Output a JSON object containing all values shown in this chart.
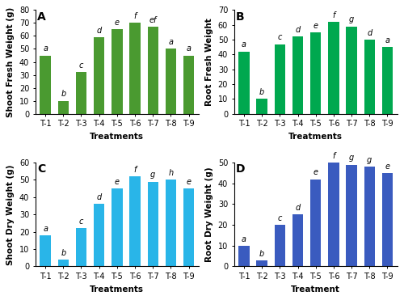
{
  "panels": [
    {
      "label": "A",
      "ylabel": "Shoot Fresh Weight (g)",
      "xlabel": "Treatments",
      "categories": [
        "T-1",
        "T-2",
        "T-3",
        "T-4",
        "T-5",
        "T-6",
        "T-7",
        "T-8",
        "T-9"
      ],
      "values": [
        45,
        10,
        32,
        59,
        65,
        70,
        67,
        50,
        45
      ],
      "letters": [
        "a",
        "b",
        "c",
        "d",
        "e",
        "f",
        "ef",
        "a",
        "a"
      ],
      "ylim": [
        0,
        80
      ],
      "yticks": [
        0,
        10,
        20,
        30,
        40,
        50,
        60,
        70,
        80
      ],
      "color": "#4a9a30"
    },
    {
      "label": "B",
      "ylabel": "Root Fresh Weight",
      "xlabel": "Treatments",
      "categories": [
        "T-1",
        "T-2",
        "T-3",
        "T-4",
        "T-5",
        "T-6",
        "T-7",
        "T-8",
        "T-9"
      ],
      "values": [
        42,
        10,
        47,
        52,
        55,
        62,
        59,
        50,
        45
      ],
      "letters": [
        "a",
        "b",
        "c",
        "d",
        "e",
        "f",
        "g",
        "d",
        "a"
      ],
      "ylim": [
        0,
        70
      ],
      "yticks": [
        0,
        10,
        20,
        30,
        40,
        50,
        60,
        70
      ],
      "color": "#00a84f"
    },
    {
      "label": "C",
      "ylabel": "Shoot Dry Weight (g)",
      "xlabel": "Treatments",
      "categories": [
        "T-1",
        "T-2",
        "T-3",
        "T-4",
        "T-5",
        "T-6",
        "T-7",
        "T-8",
        "T-9"
      ],
      "values": [
        18,
        4,
        22,
        36,
        45,
        52,
        49,
        50,
        45
      ],
      "letters": [
        "a",
        "b",
        "c",
        "d",
        "e",
        "f",
        "g",
        "h",
        "e"
      ],
      "ylim": [
        0,
        60
      ],
      "yticks": [
        0,
        10,
        20,
        30,
        40,
        50,
        60
      ],
      "color": "#29b5e8"
    },
    {
      "label": "D",
      "ylabel": "Root Dry Weight (g)",
      "xlabel": "Treatment",
      "categories": [
        "T-1",
        "T-2",
        "T-3",
        "T-4",
        "T-5",
        "T-6",
        "T-7",
        "T-8",
        "T-9"
      ],
      "values": [
        10,
        3,
        20,
        25,
        42,
        50,
        49,
        48,
        45
      ],
      "letters": [
        "a",
        "b",
        "c",
        "d",
        "e",
        "f",
        "g",
        "g",
        "e"
      ],
      "ylim": [
        0,
        50
      ],
      "yticks": [
        0,
        10,
        20,
        30,
        40,
        50
      ],
      "color": "#3a5bbf"
    }
  ],
  "bg_color": "#ffffff",
  "figure_bg": "#ffffff",
  "bar_width": 0.6,
  "tick_fontsize": 7,
  "label_fontsize": 7.5,
  "letter_fontsize": 7,
  "panel_label_fontsize": 10
}
